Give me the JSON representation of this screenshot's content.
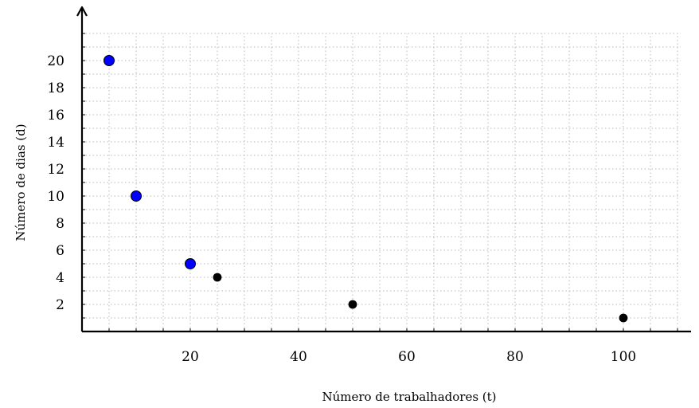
{
  "chart_data": {
    "type": "scatter",
    "title": "",
    "xlabel": "Número de trabalhadores (t)",
    "ylabel": "Número de dias (d)",
    "xlim": [
      0,
      113
    ],
    "ylim": [
      0,
      22.5
    ],
    "x_ticks": [
      20,
      40,
      60,
      80,
      100
    ],
    "y_ticks": [
      2,
      4,
      6,
      8,
      10,
      12,
      14,
      16,
      18,
      20
    ],
    "x_minor_step": 5,
    "y_minor_step": 1,
    "grid": true,
    "series": [
      {
        "color": "#0000ff",
        "marker": "large-circle",
        "points": [
          [
            5,
            20
          ],
          [
            10,
            10
          ],
          [
            20,
            5
          ]
        ]
      },
      {
        "color": "#000000",
        "marker": "small-circle",
        "points": [
          [
            25,
            4
          ],
          [
            50,
            2
          ],
          [
            100,
            1
          ]
        ]
      }
    ]
  }
}
